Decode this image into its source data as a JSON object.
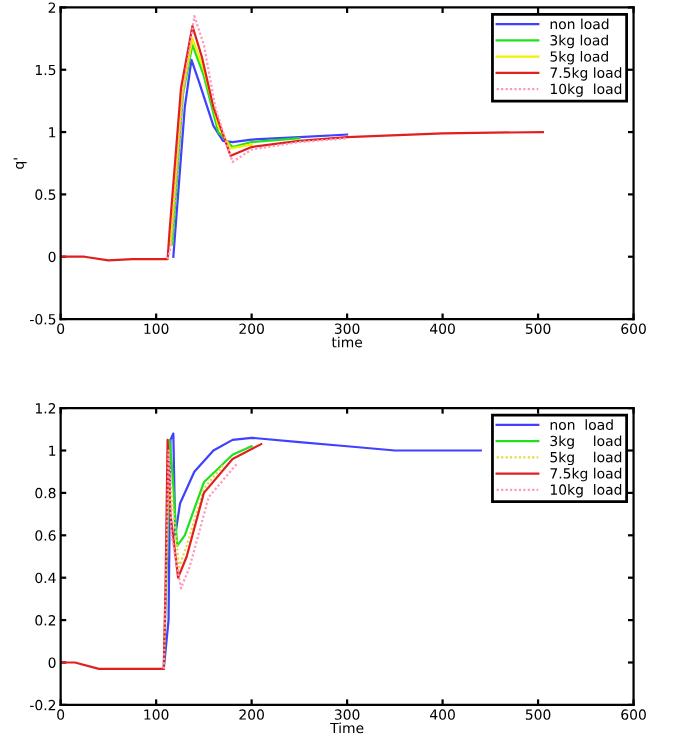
{
  "chart_data": [
    {
      "type": "line",
      "xlabel": "time",
      "ylabel": "q'",
      "xlim": [
        0,
        600
      ],
      "xticks": [
        0,
        100,
        200,
        300,
        400,
        500,
        600
      ],
      "ylim": [
        -0.5,
        2
      ],
      "yticks": [
        -0.5,
        0,
        {
          "value": 0.5,
          "label": "0.5"
        },
        1,
        {
          "value": 1.5,
          "label": "1.5"
        },
        2
      ],
      "legend": "top right",
      "grid": false,
      "series": [
        {
          "name": "non load",
          "color": "#4040ff",
          "line_style": "solid",
          "x": [
            118,
            130,
            137,
            145,
            160,
            170,
            180,
            200,
            250,
            300
          ],
          "values": [
            0,
            1.2,
            1.58,
            1.4,
            1.05,
            0.93,
            0.92,
            0.94,
            0.96,
            0.98
          ]
        },
        {
          "name": "3kg load",
          "color": "#20e020",
          "line_style": "solid",
          "x": [
            117,
            128,
            138,
            150,
            165,
            180,
            200,
            250
          ],
          "values": [
            0.1,
            1.3,
            1.7,
            1.45,
            1.0,
            0.88,
            0.92,
            0.95
          ]
        },
        {
          "name": "5kg load",
          "color": "#f0f000",
          "line_style": "solid",
          "x": [
            115,
            127,
            138,
            150,
            165,
            178,
            200
          ],
          "values": [
            0.1,
            1.3,
            1.75,
            1.5,
            1.05,
            0.87,
            0.9
          ]
        },
        {
          "name": "7.5kg load",
          "color": "#e02020",
          "line_style": "solid",
          "x": [
            0,
            25,
            50,
            75,
            112,
            114,
            126,
            138,
            148,
            160,
            178,
            200,
            250,
            300,
            400,
            505
          ],
          "values": [
            0,
            0,
            -0.03,
            -0.02,
            -0.02,
            0.2,
            1.35,
            1.85,
            1.6,
            1.2,
            0.81,
            0.88,
            0.93,
            0.96,
            0.99,
            1.0
          ]
        },
        {
          "name": "10kg  load",
          "color": "#ff99bb",
          "line_style": "dotted",
          "x": [
            112,
            116,
            128,
            140,
            150,
            162,
            180,
            200,
            250,
            300
          ],
          "values": [
            -0.02,
            0.1,
            1.3,
            1.93,
            1.7,
            1.2,
            0.76,
            0.86,
            0.92,
            0.95
          ]
        }
      ]
    },
    {
      "type": "line",
      "xlabel": "Time",
      "xlim": [
        0,
        600
      ],
      "xticks": [
        0,
        100,
        200,
        300,
        400,
        500,
        600
      ],
      "ylim": [
        -0.2,
        1.2
      ],
      "yticks": [
        {
          "value": -0.2,
          "label": "-0.2"
        },
        0,
        {
          "value": 0.2,
          "label": "0.2"
        },
        {
          "value": 0.4,
          "label": "0.4"
        },
        {
          "value": 0.6,
          "label": "0.6"
        },
        {
          "value": 0.8,
          "label": "0.8"
        },
        1,
        {
          "value": 1.2,
          "label": "1.2"
        }
      ],
      "legend": "top right",
      "grid": false,
      "series": [
        {
          "name": "non  load",
          "color": "#4040ff",
          "line_style": "solid",
          "x": [
            108,
            113,
            115,
            118,
            120,
            125,
            140,
            160,
            180,
            200,
            250,
            300,
            350,
            400,
            440
          ],
          "values": [
            -0.03,
            0.2,
            1.05,
            1.08,
            0.6,
            0.75,
            0.9,
            1.0,
            1.05,
            1.06,
            1.04,
            1.02,
            1.0,
            1.0,
            1.0
          ]
        },
        {
          "name": "3kg    load",
          "color": "#20e020",
          "line_style": "solid",
          "x": [
            108,
            112,
            114,
            117,
            122,
            130,
            150,
            180,
            200
          ],
          "values": [
            -0.03,
            0.6,
            1.05,
            0.9,
            0.55,
            0.6,
            0.85,
            0.98,
            1.02
          ]
        },
        {
          "name": "5kg    load",
          "color": "#e8d840",
          "line_style": "dotted",
          "x": [
            111,
            113,
            116,
            124,
            132,
            150,
            170
          ],
          "values": [
            0.5,
            1.0,
            0.8,
            0.45,
            0.55,
            0.82,
            0.93
          ]
        },
        {
          "name": "7.5kg load",
          "color": "#e02020",
          "line_style": "solid",
          "x": [
            0,
            15,
            40,
            108,
            110,
            112,
            115,
            123,
            132,
            150,
            180,
            210
          ],
          "values": [
            0,
            0,
            -0.03,
            -0.03,
            0.4,
            1.05,
            0.7,
            0.4,
            0.5,
            0.8,
            0.96,
            1.03
          ]
        },
        {
          "name": "10kg  load",
          "color": "#ff99bb",
          "line_style": "dotted",
          "x": [
            108,
            111,
            113,
            116,
            126,
            135,
            155,
            185
          ],
          "values": [
            -0.03,
            0.5,
            1.0,
            0.6,
            0.35,
            0.45,
            0.78,
            0.94
          ]
        }
      ]
    }
  ]
}
